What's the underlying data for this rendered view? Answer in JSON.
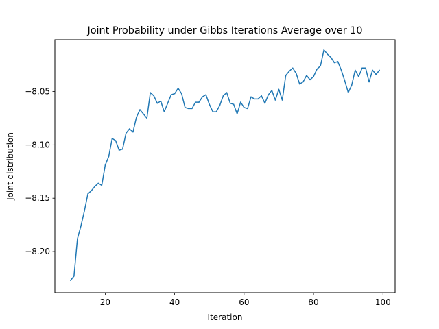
{
  "chart_data": {
    "type": "line",
    "title": "Joint Probability under Gibbs Iterations Average over 10",
    "xlabel": "Iteration",
    "ylabel": "Joint distribution",
    "xlim": [
      5.5,
      103.5
    ],
    "ylim": [
      -8.2385,
      -8.0015
    ],
    "x_ticks": [
      20,
      40,
      60,
      80,
      100
    ],
    "x_tick_labels": [
      "20",
      "40",
      "60",
      "80",
      "100"
    ],
    "y_ticks": [
      -8.2,
      -8.15,
      -8.1,
      -8.05
    ],
    "y_tick_labels": [
      "−8.20",
      "−8.15",
      "−8.10",
      "−8.05"
    ],
    "grid": false,
    "line_color": "#1f77b4",
    "series": [
      {
        "x": [
          10,
          11,
          12,
          13,
          14,
          15,
          16,
          17,
          18,
          19,
          20,
          21,
          22,
          23,
          24,
          25,
          26,
          27,
          28,
          29,
          30,
          31,
          32,
          33,
          34,
          35,
          36,
          37,
          38,
          39,
          40,
          41,
          42,
          43,
          44,
          45,
          46,
          47,
          48,
          49,
          50,
          51,
          52,
          53,
          54,
          55,
          56,
          57,
          58,
          59,
          60,
          61,
          62,
          63,
          64,
          65,
          66,
          67,
          68,
          69,
          70,
          71,
          72,
          73,
          74,
          75,
          76,
          77,
          78,
          79,
          80,
          81,
          82,
          83,
          84,
          85,
          86,
          87,
          88,
          89,
          90,
          91,
          92,
          93,
          94,
          95,
          96,
          97,
          98,
          99
        ],
        "values": [
          -8.227,
          -8.223,
          -8.188,
          -8.176,
          -8.162,
          -8.146,
          -8.143,
          -8.139,
          -8.136,
          -8.138,
          -8.119,
          -8.111,
          -8.094,
          -8.096,
          -8.105,
          -8.104,
          -8.089,
          -8.085,
          -8.088,
          -8.074,
          -8.067,
          -8.071,
          -8.075,
          -8.051,
          -8.054,
          -8.061,
          -8.059,
          -8.069,
          -8.061,
          -8.053,
          -8.052,
          -8.047,
          -8.052,
          -8.065,
          -8.066,
          -8.066,
          -8.06,
          -8.06,
          -8.055,
          -8.053,
          -8.062,
          -8.069,
          -8.069,
          -8.063,
          -8.054,
          -8.051,
          -8.061,
          -8.062,
          -8.071,
          -8.06,
          -8.065,
          -8.066,
          -8.055,
          -8.057,
          -8.057,
          -8.054,
          -8.061,
          -8.053,
          -8.049,
          -8.058,
          -8.048,
          -8.058,
          -8.035,
          -8.031,
          -8.028,
          -8.033,
          -8.043,
          -8.041,
          -8.035,
          -8.039,
          -8.036,
          -8.029,
          -8.026,
          -8.011,
          -8.015,
          -8.018,
          -8.023,
          -8.022,
          -8.03,
          -8.04,
          -8.051,
          -8.044,
          -8.03,
          -8.036,
          -8.028,
          -8.028,
          -8.041,
          -8.03,
          -8.034,
          -8.03
        ]
      }
    ]
  }
}
